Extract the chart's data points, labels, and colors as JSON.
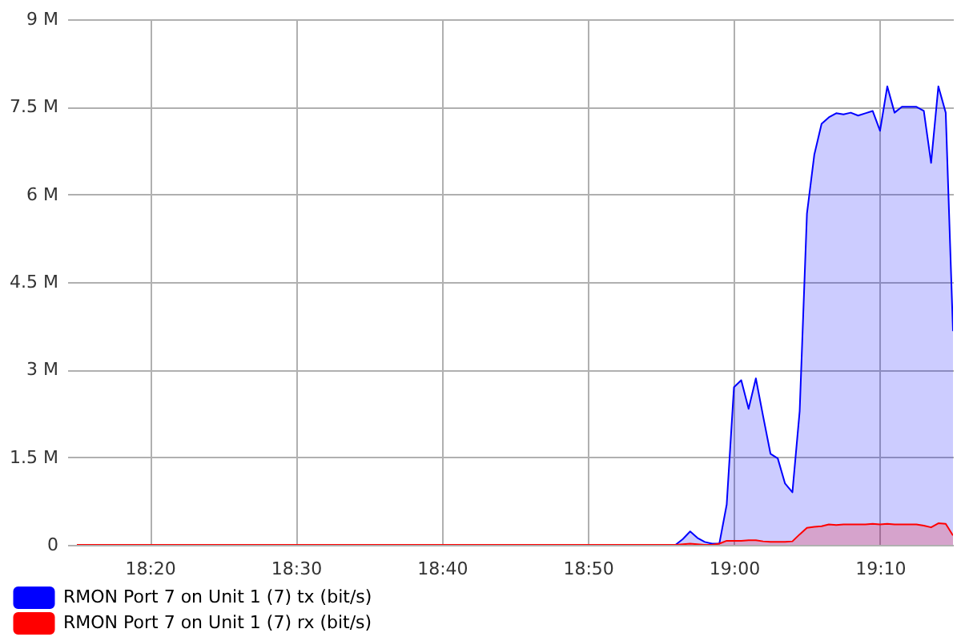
{
  "chart_data": {
    "type": "area",
    "x": [
      18.25,
      18.9333,
      18.9417,
      18.95,
      18.9583,
      18.9667,
      18.975,
      18.9833,
      18.9917,
      19,
      19.0083,
      19.0167,
      19.025,
      19.0333,
      19.0417,
      19.05,
      19.0583,
      19.0667,
      19.075,
      19.0833,
      19.0917,
      19.1,
      19.1083,
      19.1167,
      19.125,
      19.1333,
      19.1417,
      19.15,
      19.1583,
      19.1667,
      19.175,
      19.1833,
      19.1917,
      19.2,
      19.2083,
      19.2167,
      19.225,
      19.2333,
      19.2417,
      19.25
    ],
    "series": [
      {
        "name": "RMON Port  7 on Unit 1 (7) tx (bit/s)",
        "color": "#0000ff",
        "values": [
          0,
          0,
          100000,
          230000,
          120000,
          50000,
          20000,
          20000,
          690000,
          2700000,
          2820000,
          2330000,
          2850000,
          2200000,
          1560000,
          1480000,
          1050000,
          900000,
          2290000,
          5670000,
          6680000,
          7210000,
          7320000,
          7390000,
          7370000,
          7400000,
          7350000,
          7390000,
          7430000,
          7090000,
          7850000,
          7400000,
          7500000,
          7500000,
          7500000,
          7430000,
          6540000,
          7850000,
          7400000,
          3660000
        ]
      },
      {
        "name": "RMON Port  7 on Unit 1 (7) rx (bit/s)",
        "color": "#ff0000",
        "values": [
          0,
          0,
          10000,
          20000,
          10000,
          0,
          0,
          20000,
          70000,
          70000,
          70000,
          80000,
          80000,
          60000,
          50000,
          50000,
          50000,
          60000,
          180000,
          290000,
          310000,
          320000,
          350000,
          340000,
          350000,
          350000,
          350000,
          350000,
          360000,
          350000,
          360000,
          350000,
          350000,
          350000,
          350000,
          330000,
          300000,
          370000,
          360000,
          160000
        ]
      }
    ],
    "xlim": [
      18.25,
      19.25
    ],
    "xticks": [
      {
        "value": 18.3333,
        "label": "18:20"
      },
      {
        "value": 18.5,
        "label": "18:30"
      },
      {
        "value": 18.6667,
        "label": "18:40"
      },
      {
        "value": 18.8333,
        "label": "18:50"
      },
      {
        "value": 19,
        "label": "19:00"
      },
      {
        "value": 19.1667,
        "label": "19:10"
      }
    ],
    "ylim": [
      0,
      9000000
    ],
    "yticks": [
      0,
      {
        "value": 1500000,
        "label": "1.5 M"
      },
      {
        "value": 3000000,
        "label": "3 M"
      },
      {
        "value": 4500000,
        "label": "4.5 M"
      },
      {
        "value": 6000000,
        "label": "6 M"
      },
      {
        "value": 7500000,
        "label": "7.5 M"
      },
      {
        "value": 9000000,
        "label": "9 M"
      }
    ],
    "grid": true,
    "legend": "bottom"
  }
}
